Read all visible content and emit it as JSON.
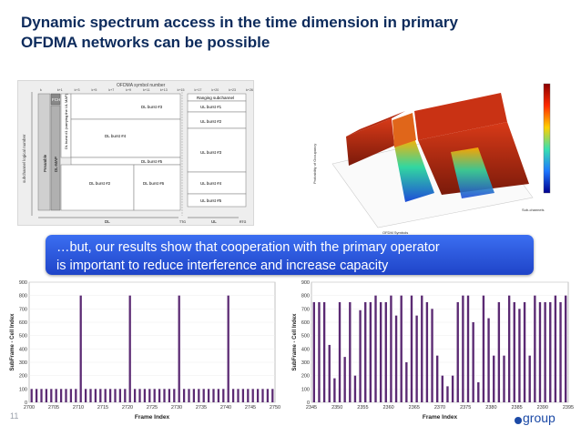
{
  "slide": {
    "title_line1": "Dynamic spectrum access in the time dimension in primary",
    "title_line2": "OFDMA networks can be possible",
    "callout_line1": "…but, our results show that cooperation with the primary operator",
    "callout_line2": "is important to reduce interference and increase capacity",
    "page_number": "11",
    "logo_text": "group"
  },
  "frame_diagram": {
    "header": "OFDMA symbol number",
    "symbol_ticks": [
      "k",
      "k+1",
      "k+3",
      "k+5",
      "k+7",
      "k+9",
      "k+11",
      "k+13",
      "k+15",
      "k+17",
      "k+20",
      "k+23",
      "k+26"
    ],
    "y_axis_label": "subchannel logical number",
    "preamble": "Preamble",
    "fch": "FCH",
    "dl_map": "DL-MAP",
    "ul_map": "DL burst #1 (carrying the UL MAP)",
    "ranging": "Ranging subchannel",
    "dl_bursts": [
      "DL burst #3",
      "DL burst #4",
      "DL burst #5",
      "DL burst #2",
      "DL burst #6"
    ],
    "ul_bursts": [
      "UL burst #1",
      "UL burst #2",
      "UL burst #3",
      "UL burst #4",
      "UL burst #5"
    ],
    "dl_label": "DL",
    "ul_label": "UL",
    "ttg": "TTG",
    "rtg": "RTG"
  },
  "plot3d": {
    "z_label": "Probability of Occupancy",
    "x_label": "OFDM Symbols",
    "y_label": "Sub-channels"
  },
  "colors": {
    "title": "#0d2b5c",
    "callout": "#2a55dc",
    "bar": "#5b2a73"
  },
  "chart_data": [
    {
      "type": "bar",
      "title": "",
      "xlabel": "Frame Index",
      "ylabel": "SubFrame - Cell Index",
      "x_start": 2700,
      "x_step": 1,
      "xlim": [
        2700,
        2750
      ],
      "ylim": [
        0,
        900
      ],
      "xticks": [
        2700,
        2705,
        2710,
        2715,
        2720,
        2725,
        2730,
        2735,
        2740,
        2745,
        2750
      ],
      "yticks": [
        0,
        100,
        200,
        300,
        400,
        500,
        600,
        700,
        800,
        900
      ],
      "values": [
        100,
        100,
        100,
        100,
        100,
        100,
        100,
        100,
        100,
        100,
        800,
        100,
        100,
        100,
        100,
        100,
        100,
        100,
        100,
        100,
        800,
        100,
        100,
        100,
        100,
        100,
        100,
        100,
        100,
        100,
        800,
        100,
        100,
        100,
        100,
        100,
        100,
        100,
        100,
        100,
        800,
        100,
        100,
        100,
        100,
        100,
        100,
        100,
        100,
        100
      ]
    },
    {
      "type": "bar",
      "title": "",
      "xlabel": "Frame Index",
      "ylabel": "SubFrame - Cell Index",
      "x_start": 2345,
      "x_step": 1,
      "xlim": [
        2345,
        2395
      ],
      "ylim": [
        0,
        900
      ],
      "xticks": [
        2345,
        2350,
        2355,
        2360,
        2365,
        2370,
        2375,
        2380,
        2385,
        2390,
        2395
      ],
      "yticks": [
        0,
        100,
        200,
        300,
        400,
        500,
        600,
        700,
        800,
        900
      ],
      "values": [
        750,
        750,
        750,
        430,
        180,
        750,
        340,
        750,
        200,
        690,
        750,
        750,
        800,
        750,
        750,
        800,
        650,
        800,
        300,
        800,
        650,
        800,
        750,
        700,
        350,
        200,
        120,
        200,
        750,
        800,
        800,
        600,
        150,
        800,
        630,
        350,
        750,
        350,
        800,
        750,
        700,
        750,
        350,
        800,
        750,
        750,
        750,
        800,
        750,
        800
      ]
    }
  ]
}
